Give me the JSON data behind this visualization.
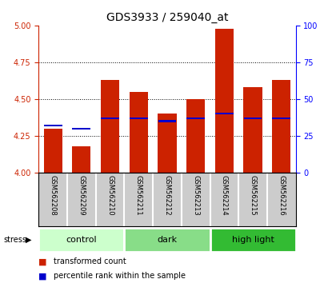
{
  "title": "GDS3933 / 259040_at",
  "samples": [
    "GSM562208",
    "GSM562209",
    "GSM562210",
    "GSM562211",
    "GSM562212",
    "GSM562213",
    "GSM562214",
    "GSM562215",
    "GSM562216"
  ],
  "transformed_counts": [
    4.3,
    4.18,
    4.63,
    4.55,
    4.4,
    4.5,
    4.98,
    4.58,
    4.63
  ],
  "percentile_values": [
    4.32,
    4.3,
    4.37,
    4.37,
    4.35,
    4.37,
    4.4,
    4.37,
    4.37
  ],
  "ylim_left": [
    4.0,
    5.0
  ],
  "ylim_right": [
    0,
    100
  ],
  "yticks_left": [
    4.0,
    4.25,
    4.5,
    4.75,
    5.0
  ],
  "yticks_right": [
    0,
    25,
    50,
    75,
    100
  ],
  "groups": [
    {
      "name": "control",
      "indices": [
        0,
        1,
        2
      ],
      "color": "#ccffcc"
    },
    {
      "name": "dark",
      "indices": [
        3,
        4,
        5
      ],
      "color": "#88dd88"
    },
    {
      "name": "high light",
      "indices": [
        6,
        7,
        8
      ],
      "color": "#33bb33"
    }
  ],
  "bar_color": "#cc2200",
  "marker_color": "#0000cc",
  "bar_bottom": 4.0,
  "bar_width": 0.65,
  "stress_label": "stress",
  "legend": [
    "transformed count",
    "percentile rank within the sample"
  ],
  "title_fontsize": 10,
  "tick_fontsize": 7,
  "label_fontsize": 7
}
